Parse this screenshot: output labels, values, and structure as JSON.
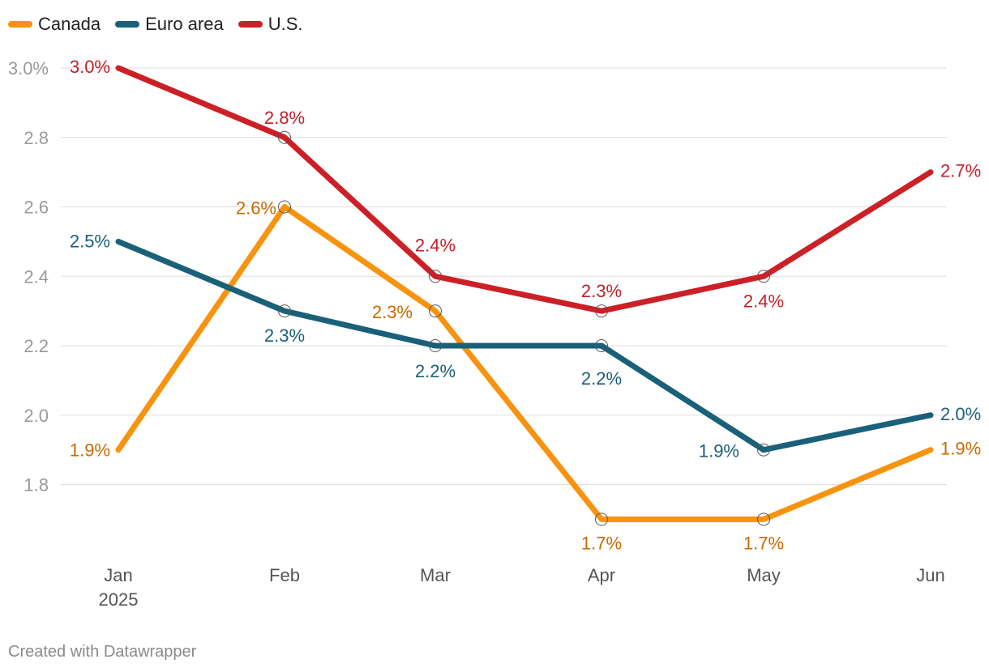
{
  "chart_data": {
    "type": "line",
    "categories": [
      "Jan",
      "Feb",
      "Mar",
      "Apr",
      "May",
      "Jun"
    ],
    "category_sublabels": [
      "2025",
      "",
      "",
      "",
      "",
      ""
    ],
    "series": [
      {
        "name": "Canada",
        "color": "#f7930f",
        "label_color": "#c76a00",
        "values": [
          1.9,
          2.6,
          2.3,
          1.7,
          1.7,
          1.9
        ],
        "value_labels": [
          "1.9%",
          "2.6%",
          "2.3%",
          "1.7%",
          "1.7%",
          "1.9%"
        ]
      },
      {
        "name": "Euro area",
        "color": "#1a6079",
        "label_color": "#1a6079",
        "values": [
          2.5,
          2.3,
          2.2,
          2.2,
          1.9,
          2.0
        ],
        "value_labels": [
          "2.5%",
          "2.3%",
          "2.2%",
          "2.2%",
          "1.9%",
          "2.0%"
        ]
      },
      {
        "name": "U.S.",
        "color": "#cc2027",
        "label_color": "#c0202a",
        "values": [
          3.0,
          2.8,
          2.4,
          2.3,
          2.4,
          2.7
        ],
        "value_labels": [
          "3.0%",
          "2.8%",
          "2.4%",
          "2.3%",
          "2.4%",
          "2.7%"
        ]
      }
    ],
    "yticks": [
      3.0,
      2.8,
      2.6,
      2.4,
      2.2,
      2.0,
      1.8
    ],
    "ytick_labels": [
      "3.0%",
      "2.8",
      "2.6",
      "2.4",
      "2.2",
      "2.0",
      "1.8"
    ],
    "ylim": [
      1.7,
      3.0
    ],
    "grid": true,
    "legend": "top-left"
  },
  "footer": {
    "credit": "Created with Datawrapper"
  }
}
